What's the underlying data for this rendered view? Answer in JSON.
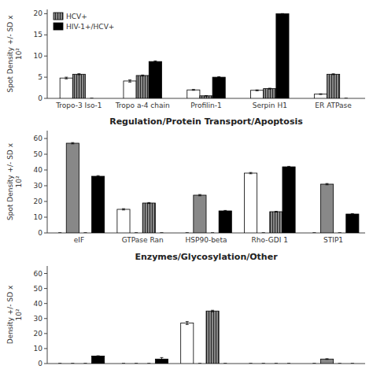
{
  "chart_data": [
    {
      "type": "bar",
      "categories": [
        "Tropo-3 Iso-1",
        "Tropo a-4 chain",
        "Profilin-1",
        "Serpin H1",
        "ER ATPase"
      ],
      "ylabel": "Spot Density +/- SD x\n10²",
      "series": [
        {
          "color": "white",
          "values": [
            4.8,
            4.1,
            2.0,
            1.9,
            1.0
          ],
          "errors": [
            0.2,
            0.25,
            0.1,
            0.1,
            0.08
          ]
        },
        {
          "name": "HCV+",
          "color": "#888888",
          "values": [
            5.7,
            5.4,
            0.6,
            2.3,
            5.7
          ],
          "errors": [
            0.12,
            0.12,
            0.05,
            0.1,
            0.1
          ]
        },
        {
          "name": "HIV-1+/HCV+",
          "color": "black",
          "values": [
            0.0,
            8.7,
            5.0,
            20.0,
            0.0
          ],
          "errors": [
            0.0,
            0.15,
            0.12,
            0.0,
            0.0
          ]
        }
      ],
      "ylim": [
        0,
        21
      ],
      "yticks": [
        0,
        5,
        10,
        15,
        20
      ],
      "legend": "upper left"
    },
    {
      "type": "bar",
      "title": "Regulation/Protein Transport/Apoptosis",
      "categories": [
        "eIF",
        "GTPase Ran",
        "HSP90-beta",
        "Rho-GDI 1",
        "STIP1"
      ],
      "ylabel": "Spot Density +/- SD x\n10²",
      "series": [
        {
          "color": "white",
          "values": [
            0.0,
            15.0,
            0.0,
            38.0,
            0.0
          ],
          "errors": [
            0.0,
            0.4,
            0.0,
            0.4,
            0.0
          ]
        },
        {
          "color": "#888888",
          "values": [
            57.0,
            0.0,
            24.0,
            0.0,
            31.0
          ],
          "errors": [
            0.4,
            0.0,
            0.4,
            0.0,
            0.4
          ]
        },
        {
          "color": "#888888",
          "values": [
            0.0,
            19.0,
            0.0,
            13.5,
            0.0
          ],
          "errors": [
            0.0,
            0.3,
            0.0,
            0.2,
            0.0
          ]
        },
        {
          "color": "black",
          "values": [
            36.0,
            0.0,
            14.0,
            42.0,
            12.0
          ],
          "errors": [
            0.4,
            0.0,
            0.3,
            0.3,
            0.3
          ]
        }
      ],
      "ylim": [
        0,
        65
      ],
      "yticks": [
        0,
        10,
        20,
        30,
        40,
        50,
        60
      ]
    },
    {
      "type": "bar",
      "title": "Enzymes/Glycosylation/Other",
      "categories": [
        null,
        null,
        null,
        null,
        null
      ],
      "ylabel": "Density +/- SD x\n10²",
      "series": [
        {
          "color": "white",
          "values": [
            0.0,
            0.0,
            27.0,
            0.0,
            0.0
          ],
          "errors": [
            0.0,
            0.0,
            1.0,
            0.0,
            0.0
          ]
        },
        {
          "color": "#888888",
          "values": [
            0.0,
            0.0,
            0.0,
            0.0,
            3.0
          ],
          "errors": [
            0.0,
            0.0,
            0.0,
            0.0,
            0.2
          ]
        },
        {
          "color": "#888888",
          "values": [
            0.0,
            0.0,
            35.0,
            0.0,
            0.0
          ],
          "errors": [
            0.0,
            0.0,
            0.5,
            0.0,
            0.0
          ]
        },
        {
          "color": "black",
          "values": [
            5.0,
            3.0,
            0.0,
            0.0,
            0.0
          ],
          "errors": [
            0.2,
            1.0,
            0.0,
            0.0,
            0.0
          ]
        }
      ],
      "ylim": [
        0,
        65
      ],
      "yticks": [
        0,
        10,
        20,
        30,
        40,
        50,
        60
      ],
      "tick_labels": "y"
    }
  ]
}
